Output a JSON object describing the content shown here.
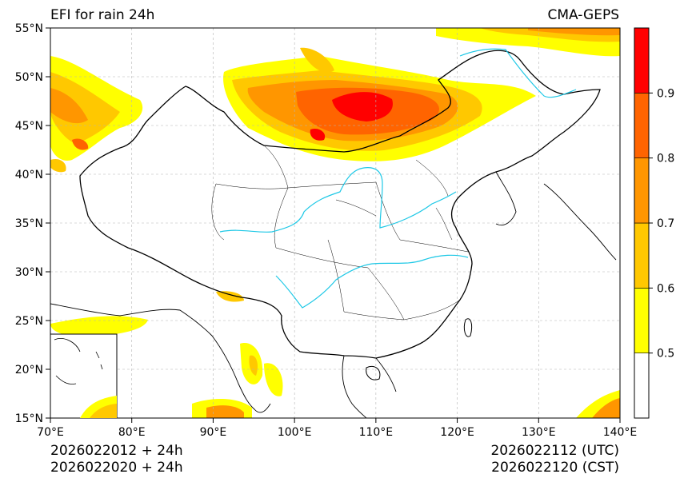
{
  "header": {
    "title": "EFI for rain 24h",
    "model": "CMA-GEPS"
  },
  "footer": {
    "left_line1": "2026022012 + 24h",
    "left_line2": "2026022020 + 24h",
    "right_line1": "2026022112 (UTC)",
    "right_line2": "2026022120 (CST)"
  },
  "axes": {
    "lon_labels": [
      "70°E",
      "80°E",
      "90°E",
      "100°E",
      "110°E",
      "120°E",
      "130°E",
      "140°E"
    ],
    "lat_labels": [
      "15°N",
      "20°N",
      "25°N",
      "30°N",
      "35°N",
      "40°N",
      "45°N",
      "50°N",
      "55°N"
    ],
    "lon_range": [
      70,
      140
    ],
    "lat_range": [
      15,
      55
    ],
    "grid": "dashed"
  },
  "colorbar": {
    "labels": [
      "0.5",
      "0.6",
      "0.7",
      "0.8",
      "0.9"
    ],
    "colors": [
      "#ffffff",
      "#ffff00",
      "#ffc800",
      "#ff9600",
      "#ff6400",
      "#ff0000"
    ]
  },
  "colors": {
    "coastline": "#000000",
    "rivers": "#1ec8e6",
    "grid": "#b4b4b4"
  }
}
